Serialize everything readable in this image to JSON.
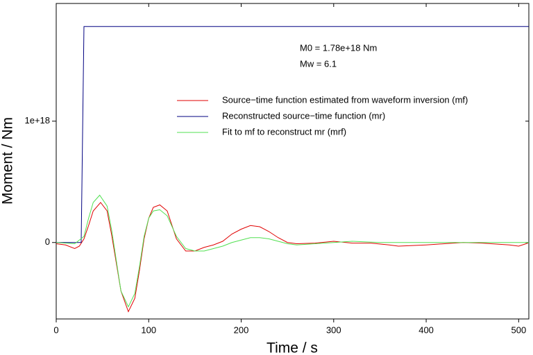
{
  "chart_data": {
    "type": "line",
    "x_label": "Time / s",
    "y_label": "Moment / Nm",
    "annotations": [
      "M0 = 1.78e+18 Nm",
      "Mw = 6.1"
    ],
    "xlim": [
      0,
      511
    ],
    "xticks": [
      0,
      100,
      200,
      300,
      400,
      500
    ],
    "ylim": [
      -6.3e+17,
      1.97e+18
    ],
    "yticks": [
      0,
      {
        "value": 1e+18,
        "label": "1e+18"
      }
    ],
    "legend": "upper right",
    "series": [
      {
        "name": "Source−time function estimated from waveform inversion (mf)",
        "color": "#e00000",
        "x": [
          0,
          10,
          20,
          25,
          30,
          35,
          40,
          48,
          55,
          60,
          65,
          70,
          78,
          85,
          90,
          95,
          100,
          105,
          112,
          120,
          130,
          140,
          150,
          160,
          170,
          180,
          190,
          200,
          210,
          220,
          230,
          240,
          250,
          260,
          280,
          300,
          320,
          340,
          360,
          370,
          400,
          420,
          440,
          460,
          490,
          500,
          510
        ],
        "values": [
          -1e+16,
          -2e+16,
          -5e+16,
          -3e+16,
          3e+16,
          1.4e+17,
          2.6e+17,
          3.3e+17,
          2.6e+17,
          6e+16,
          -1.7e+17,
          -4e+17,
          -5.7e+17,
          -4.6e+17,
          -2.3e+17,
          3e+16,
          2e+17,
          2.9e+17,
          3.1e+17,
          2.6e+17,
          3e+16,
          -7e+16,
          -7e+16,
          -4e+16,
          -2e+16,
          1e+16,
          7e+16,
          1.1e+17,
          1.4e+17,
          1.3e+17,
          9e+16,
          4e+16,
          0,
          -1e+16,
          -5000000000000000.0,
          1e+16,
          -5000000000000000.0,
          -5000000000000000.0,
          -2e+16,
          -3e+16,
          -2e+16,
          -1e+16,
          0,
          -5000000000000000.0,
          -2e+16,
          -3e+16,
          -5000000000000000.0
        ]
      },
      {
        "name": "Reconstructed source−time function (mr)",
        "color": "#000080",
        "x": [
          0,
          27,
          30,
          511
        ],
        "values": [
          0,
          0,
          1.78e+18,
          1.78e+18
        ]
      },
      {
        "name": "Fit to mf to reconstruct mr (mrf)",
        "color": "#50e050",
        "x": [
          0,
          20,
          30,
          35,
          40,
          47,
          55,
          60,
          65,
          70,
          78,
          85,
          90,
          95,
          100,
          105,
          112,
          120,
          130,
          140,
          150,
          160,
          170,
          180,
          190,
          200,
          210,
          220,
          230,
          240,
          250,
          260,
          280,
          300,
          320,
          350,
          400,
          511
        ],
        "values": [
          0,
          -1e+16,
          5e+16,
          2e+17,
          3.3e+17,
          3.9e+17,
          3e+17,
          1e+17,
          -1.5e+17,
          -4e+17,
          -5.3e+17,
          -4.2e+17,
          -2e+17,
          5e+16,
          2e+17,
          2.6e+17,
          2.7e+17,
          2.2e+17,
          5e+16,
          -5e+16,
          -7e+16,
          -7e+16,
          -5e+16,
          -3e+16,
          0,
          2e+16,
          4e+16,
          4e+16,
          3e+16,
          1e+16,
          -1e+16,
          -2e+16,
          -1e+16,
          0,
          1e+16,
          0,
          0,
          0
        ]
      }
    ]
  }
}
